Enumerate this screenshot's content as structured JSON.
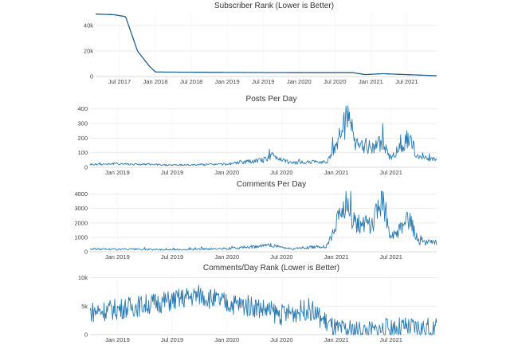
{
  "chart_data": [
    {
      "type": "line",
      "title": "Subscriber Rank (Lower is Better)",
      "x_ticks": [
        "Jul 2017",
        "Jan 2018",
        "Jul 2018",
        "Jan 2019",
        "Jul 2019",
        "Jan 2020",
        "Jul 2020",
        "Jan 2021",
        "Jul 2021"
      ],
      "y_ticks": [
        "0",
        "20k",
        "40k"
      ],
      "ylim": [
        0,
        50000
      ],
      "x_range": [
        "2017-03",
        "2021-12"
      ],
      "grid": true,
      "series_color": "#1f5f8b",
      "keypoints": [
        {
          "x": "2017-03",
          "y": 49000
        },
        {
          "x": "2017-06",
          "y": 48500
        },
        {
          "x": "2017-08",
          "y": 47000
        },
        {
          "x": "2017-10",
          "y": 20000
        },
        {
          "x": "2017-12",
          "y": 8000
        },
        {
          "x": "2018-01",
          "y": 3500
        },
        {
          "x": "2019-01",
          "y": 3200
        },
        {
          "x": "2020-01",
          "y": 3000
        },
        {
          "x": "2020-10",
          "y": 3000
        },
        {
          "x": "2020-12",
          "y": 1500
        },
        {
          "x": "2021-03",
          "y": 2200
        },
        {
          "x": "2021-12",
          "y": 600
        }
      ]
    },
    {
      "type": "line",
      "title": "Posts Per Day",
      "x_ticks": [
        "Jan 2019",
        "Jul 2019",
        "Jan 2020",
        "Jul 2020",
        "Jan 2021",
        "Jul 2021"
      ],
      "y_ticks": [
        "0",
        "100",
        "200",
        "300",
        "400"
      ],
      "ylim": [
        0,
        420
      ],
      "x_range": [
        "2018-10",
        "2021-12"
      ],
      "grid": true,
      "series_color": "#2a7ab0",
      "keypoints": [
        {
          "x": "2018-10",
          "y": 20
        },
        {
          "x": "2019-01",
          "y": 25
        },
        {
          "x": "2019-07",
          "y": 15
        },
        {
          "x": "2020-01",
          "y": 22
        },
        {
          "x": "2020-05",
          "y": 50
        },
        {
          "x": "2020-06",
          "y": 80
        },
        {
          "x": "2020-08",
          "y": 30
        },
        {
          "x": "2020-12",
          "y": 40
        },
        {
          "x": "2021-02",
          "y": 300
        },
        {
          "x": "2021-02-10",
          "y": 410
        },
        {
          "x": "2021-03",
          "y": 150
        },
        {
          "x": "2021-05",
          "y": 140
        },
        {
          "x": "2021-06",
          "y": 170
        },
        {
          "x": "2021-07",
          "y": 60
        },
        {
          "x": "2021-09",
          "y": 210
        },
        {
          "x": "2021-10",
          "y": 60
        },
        {
          "x": "2021-12",
          "y": 50
        }
      ]
    },
    {
      "type": "line",
      "title": "Comments Per Day",
      "x_ticks": [
        "Jan 2019",
        "Jul 2019",
        "Jan 2020",
        "Jul 2020",
        "Jan 2021",
        "Jul 2021"
      ],
      "y_ticks": [
        "0",
        "1000",
        "2000",
        "3000",
        "4000"
      ],
      "ylim": [
        0,
        4200
      ],
      "x_range": [
        "2018-10",
        "2021-12"
      ],
      "grid": true,
      "series_color": "#2a7ab0",
      "keypoints": [
        {
          "x": "2018-10",
          "y": 200
        },
        {
          "x": "2019-01",
          "y": 180
        },
        {
          "x": "2019-07",
          "y": 150
        },
        {
          "x": "2020-01",
          "y": 220
        },
        {
          "x": "2020-06",
          "y": 450
        },
        {
          "x": "2020-08",
          "y": 200
        },
        {
          "x": "2020-12",
          "y": 400
        },
        {
          "x": "2021-02",
          "y": 3500
        },
        {
          "x": "2021-03",
          "y": 2000
        },
        {
          "x": "2021-05",
          "y": 1800
        },
        {
          "x": "2021-06",
          "y": 4100
        },
        {
          "x": "2021-07",
          "y": 900
        },
        {
          "x": "2021-09",
          "y": 2200
        },
        {
          "x": "2021-10",
          "y": 700
        },
        {
          "x": "2021-12",
          "y": 600
        }
      ]
    },
    {
      "type": "line",
      "title": "Comments/Day Rank (Lower is Better)",
      "x_ticks": [
        "Jan 2019",
        "Jul 2019",
        "Jan 2020",
        "Jul 2020",
        "Jan 2021",
        "Jul 2021"
      ],
      "y_ticks": [
        "0",
        "5k",
        "10k"
      ],
      "ylim": [
        0,
        10500
      ],
      "x_range": [
        "2018-10",
        "2021-12"
      ],
      "grid": true,
      "series_color": "#2a7ab0",
      "keypoints": [
        {
          "x": "2018-10",
          "y": 4000
        },
        {
          "x": "2019-01",
          "y": 4500
        },
        {
          "x": "2019-07",
          "y": 6000
        },
        {
          "x": "2019-10",
          "y": 7000
        },
        {
          "x": "2020-01",
          "y": 5500
        },
        {
          "x": "2020-04",
          "y": 5000
        },
        {
          "x": "2020-07",
          "y": 3500
        },
        {
          "x": "2020-10",
          "y": 4500
        },
        {
          "x": "2021-01",
          "y": 800
        },
        {
          "x": "2021-05",
          "y": 600
        },
        {
          "x": "2021-07",
          "y": 1200
        },
        {
          "x": "2021-12",
          "y": 1000
        }
      ]
    }
  ]
}
